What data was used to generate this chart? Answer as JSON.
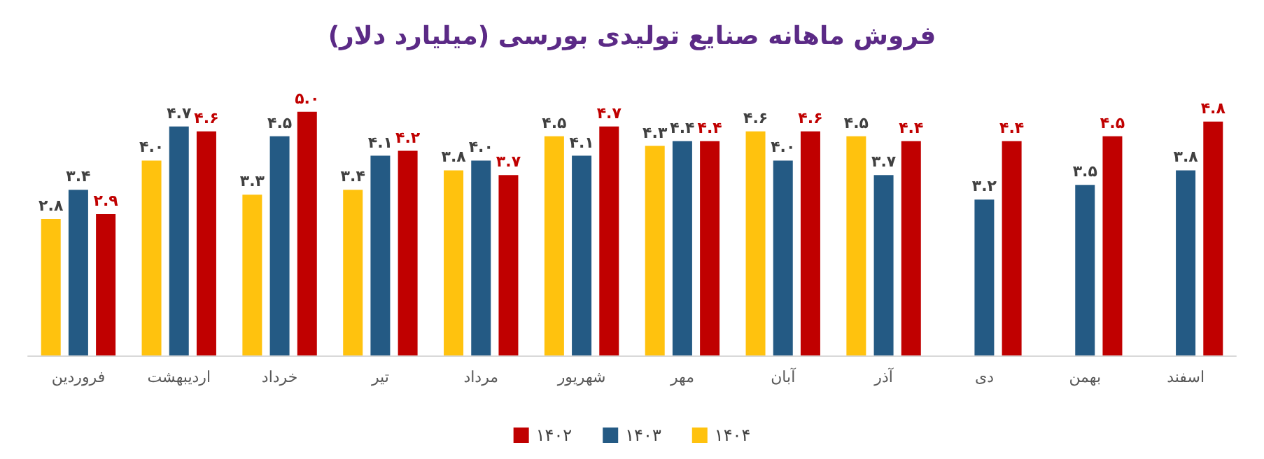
{
  "chart_data": {
    "type": "bar",
    "title": "فروش ماهانه صنایع تولیدی بورسی (میلیارد دلار)",
    "categories": [
      "فروردین",
      "اردیبهشت",
      "خرداد",
      "تیر",
      "مرداد",
      "شهریور",
      "مهر",
      "آبان",
      "آذر",
      "دی",
      "بهمن",
      "اسفند"
    ],
    "series": [
      {
        "name": "۱۴۰۴",
        "color": "#ffc20e",
        "values": [
          2.8,
          4.0,
          3.3,
          3.4,
          3.8,
          4.5,
          4.3,
          4.6,
          4.5,
          null,
          null,
          null
        ],
        "value_labels": [
          "۲.۸",
          "۴.۰",
          "۳.۳",
          "۳.۴",
          "۳.۸",
          "۴.۵",
          "۴.۳",
          "۴.۶",
          "۴.۵",
          null,
          null,
          null
        ]
      },
      {
        "name": "۱۴۰۳",
        "color": "#245a84",
        "values": [
          3.4,
          4.7,
          4.5,
          4.1,
          4.0,
          4.1,
          4.4,
          4.0,
          3.7,
          3.2,
          3.5,
          3.8
        ],
        "value_labels": [
          "۳.۴",
          "۴.۷",
          "۴.۵",
          "۴.۱",
          "۴.۰",
          "۴.۱",
          "۴.۴",
          "۴.۰",
          "۳.۷",
          "۳.۲",
          "۳.۵",
          "۳.۸"
        ]
      },
      {
        "name": "۱۴۰۲",
        "color": "#c00000",
        "values": [
          2.9,
          4.6,
          5.0,
          4.2,
          3.7,
          4.7,
          4.4,
          4.6,
          4.4,
          4.4,
          4.5,
          4.8
        ],
        "value_labels": [
          "۲.۹",
          "۴.۶",
          "۵.۰",
          "۴.۲",
          "۳.۷",
          "۴.۷",
          "۴.۴",
          "۴.۶",
          "۴.۴",
          "۴.۴",
          "۴.۵",
          "۴.۸"
        ]
      }
    ],
    "tick_labels": "x",
    "grid": false,
    "legend": "bottom"
  }
}
